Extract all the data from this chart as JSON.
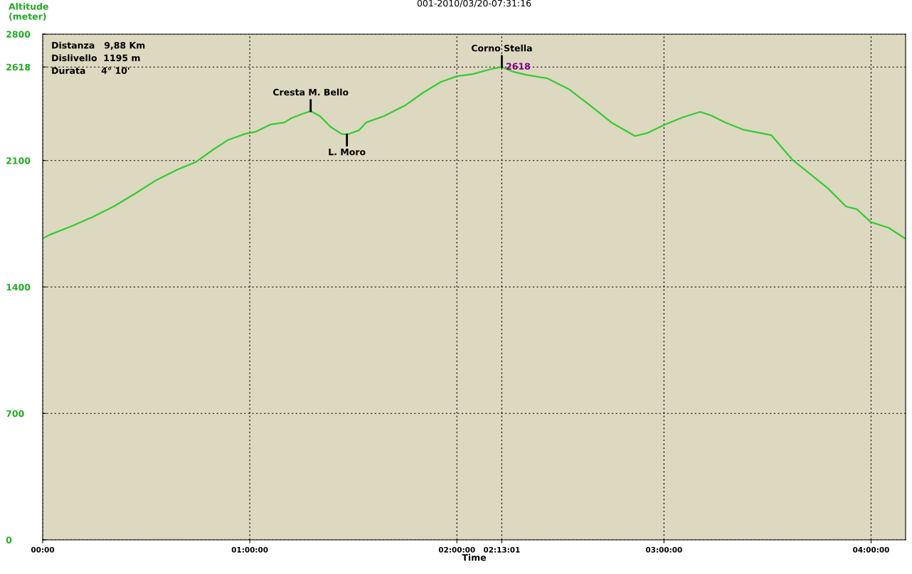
{
  "chart_data": {
    "type": "line",
    "title": "001-2010/03/20-07:31:16",
    "xlabel": "Time",
    "ylabel": "Altitude\n(meter)",
    "x": [
      0,
      0.034,
      0.137,
      0.24,
      0.343,
      0.446,
      0.549,
      0.652,
      0.738,
      0.824,
      0.893,
      0.978,
      1.03,
      1.099,
      1.167,
      1.202,
      1.253,
      1.294,
      1.339,
      1.39,
      1.442,
      1.469,
      1.528,
      1.562,
      1.648,
      1.751,
      1.837,
      1.922,
      2.001,
      2.077,
      2.163,
      2.217,
      2.266,
      2.334,
      2.437,
      2.54,
      2.643,
      2.746,
      2.86,
      2.918,
      3.004,
      3.09,
      3.175,
      3.227,
      3.296,
      3.381,
      3.519,
      3.622,
      3.708,
      3.793,
      3.879,
      3.931,
      3.998,
      4.085,
      4.164
    ],
    "series": [
      {
        "color": "#33cc33",
        "values": [
          1669,
          1689,
          1736,
          1787,
          1846,
          1917,
          1992,
          2051,
          2091,
          2161,
          2213,
          2248,
          2260,
          2299,
          2311,
          2335,
          2358,
          2374,
          2346,
          2287,
          2248,
          2244,
          2268,
          2311,
          2346,
          2406,
          2476,
          2535,
          2567,
          2579,
          2606,
          2618,
          2594,
          2575,
          2555,
          2496,
          2406,
          2311,
          2236,
          2252,
          2299,
          2339,
          2370,
          2350,
          2311,
          2272,
          2240,
          2102,
          2024,
          1945,
          1846,
          1831,
          1760,
          1728,
          1669
        ]
      }
    ],
    "xlim": [
      0,
      4.1667
    ],
    "ylim": [
      0,
      2800
    ],
    "xticks": [
      {
        "value": 0,
        "label": "00:00"
      },
      {
        "value": 1,
        "label": "01:00:00"
      },
      {
        "value": 2,
        "label": "02:00:00"
      },
      {
        "value": 2.2169,
        "label": "02:13:01"
      },
      {
        "value": 3,
        "label": "03:00:00"
      },
      {
        "value": 4,
        "label": "04:00:00"
      }
    ],
    "yticks": [
      0,
      700,
      1400,
      2100,
      2618,
      2800
    ],
    "grid": true,
    "line_style": "solid",
    "marker": "none",
    "annotations": [
      {
        "text": "Cresta M. Bello",
        "x": 1.294,
        "y": 2374
      },
      {
        "text": "L. Moro",
        "x": 1.469,
        "y": 2244
      },
      {
        "text": "Corno Stella",
        "x": 2.217,
        "y": 2618
      },
      {
        "text": "2618",
        "x": 2.217,
        "y": 2618
      },
      "Distanza   9,88 Km\nDislivello  1195 m\nDurata     4° 10'"
    ]
  }
}
